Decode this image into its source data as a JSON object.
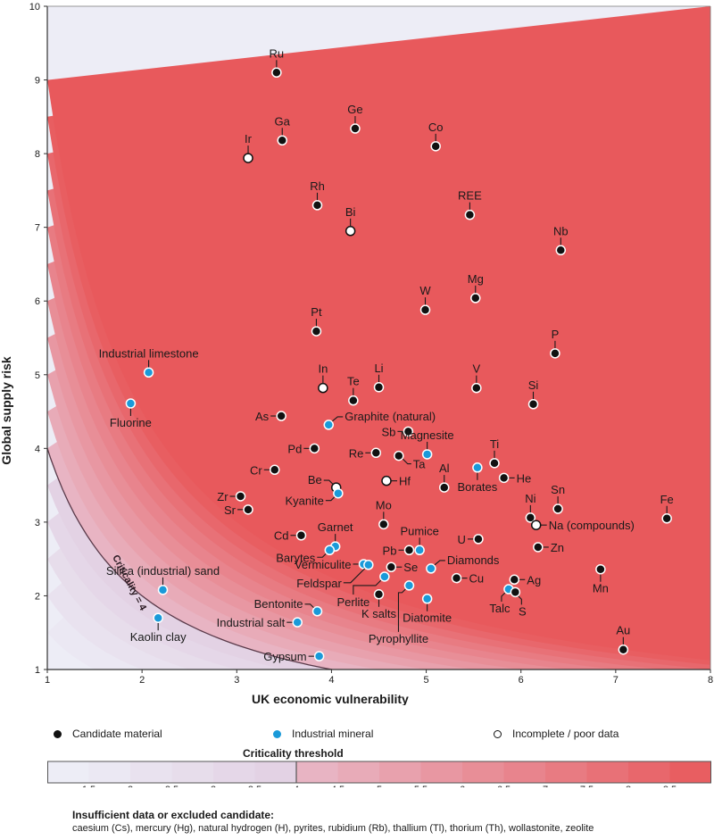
{
  "chart_data": {
    "type": "scatter",
    "title": "",
    "xlabel": "UK economic vulnerability",
    "ylabel": "Global supply risk",
    "xlim": [
      1,
      8
    ],
    "ylim": [
      1,
      10
    ],
    "x_ticks": [
      "1",
      "2",
      "3",
      "4",
      "5",
      "6",
      "7",
      "8"
    ],
    "y_ticks": [
      "1",
      "2",
      "3",
      "4",
      "5",
      "6",
      "7",
      "8",
      "9",
      "10"
    ],
    "background": "criticality contours (x × y), banded in 0.5 steps",
    "criticality_curve": {
      "label": "Criticality = 4",
      "value": 4
    },
    "categories": {
      "candidate": {
        "label": "Candidate material",
        "color": "#111111"
      },
      "industrial": {
        "label": "Industrial mineral",
        "color": "#1a9ad9"
      },
      "incomplete": {
        "label": "Incomplete / poor data",
        "color": "#ffffff"
      }
    },
    "points": [
      {
        "name": "Ru",
        "x": 3.42,
        "y": 9.1,
        "cat": "candidate",
        "pos": "top"
      },
      {
        "name": "Ga",
        "x": 3.48,
        "y": 8.18,
        "cat": "candidate",
        "pos": "top"
      },
      {
        "name": "Ir",
        "x": 3.12,
        "y": 7.94,
        "cat": "incomplete",
        "pos": "top"
      },
      {
        "name": "Ge",
        "x": 4.25,
        "y": 8.34,
        "cat": "candidate",
        "pos": "top"
      },
      {
        "name": "Co",
        "x": 5.1,
        "y": 8.1,
        "cat": "candidate",
        "pos": "top"
      },
      {
        "name": "Rh",
        "x": 3.85,
        "y": 7.3,
        "cat": "candidate",
        "pos": "top"
      },
      {
        "name": "Bi",
        "x": 4.2,
        "y": 6.95,
        "cat": "incomplete",
        "pos": "top"
      },
      {
        "name": "REE",
        "x": 5.46,
        "y": 7.17,
        "cat": "candidate",
        "pos": "top"
      },
      {
        "name": "Nb",
        "x": 6.42,
        "y": 6.69,
        "cat": "candidate",
        "pos": "top"
      },
      {
        "name": "W",
        "x": 4.99,
        "y": 5.88,
        "cat": "candidate",
        "pos": "top"
      },
      {
        "name": "Mg",
        "x": 5.52,
        "y": 6.04,
        "cat": "candidate",
        "pos": "top"
      },
      {
        "name": "Pt",
        "x": 3.84,
        "y": 5.59,
        "cat": "candidate",
        "pos": "top"
      },
      {
        "name": "P",
        "x": 6.36,
        "y": 5.29,
        "cat": "candidate",
        "pos": "top"
      },
      {
        "name": "In",
        "x": 3.91,
        "y": 4.82,
        "cat": "incomplete",
        "pos": "top"
      },
      {
        "name": "Te",
        "x": 4.23,
        "y": 4.65,
        "cat": "candidate",
        "pos": "top"
      },
      {
        "name": "Li",
        "x": 4.5,
        "y": 4.83,
        "cat": "candidate",
        "pos": "top"
      },
      {
        "name": "V",
        "x": 5.53,
        "y": 4.82,
        "cat": "candidate",
        "pos": "top"
      },
      {
        "name": "Si",
        "x": 6.13,
        "y": 4.6,
        "cat": "candidate",
        "pos": "top"
      },
      {
        "name": "As",
        "x": 3.47,
        "y": 4.44,
        "cat": "candidate",
        "pos": "left"
      },
      {
        "name": "Graphite (natural)",
        "x": 3.97,
        "y": 4.32,
        "cat": "industrial",
        "pos": "right-up"
      },
      {
        "name": "Sb",
        "x": 4.81,
        "y": 4.23,
        "cat": "candidate",
        "pos": "left"
      },
      {
        "name": "Magnesite",
        "x": 5.01,
        "y": 3.92,
        "cat": "industrial",
        "pos": "top"
      },
      {
        "name": "Pd",
        "x": 3.82,
        "y": 4.0,
        "cat": "candidate",
        "pos": "left"
      },
      {
        "name": "Re",
        "x": 4.47,
        "y": 3.94,
        "cat": "candidate",
        "pos": "left"
      },
      {
        "name": "Ta",
        "x": 4.71,
        "y": 3.9,
        "cat": "candidate",
        "pos": "right-down"
      },
      {
        "name": "Ti",
        "x": 5.72,
        "y": 3.8,
        "cat": "candidate",
        "pos": "top"
      },
      {
        "name": "Borates",
        "x": 5.54,
        "y": 3.74,
        "cat": "industrial",
        "pos": "bottom"
      },
      {
        "name": "He",
        "x": 5.82,
        "y": 3.6,
        "cat": "candidate",
        "pos": "right"
      },
      {
        "name": "Al",
        "x": 5.19,
        "y": 3.47,
        "cat": "candidate",
        "pos": "top"
      },
      {
        "name": "Hf",
        "x": 4.58,
        "y": 3.56,
        "cat": "incomplete",
        "pos": "right"
      },
      {
        "name": "Be",
        "x": 4.05,
        "y": 3.47,
        "cat": "incomplete",
        "pos": "left-up"
      },
      {
        "name": "Kyanite",
        "x": 4.07,
        "y": 3.39,
        "cat": "industrial",
        "pos": "left-down"
      },
      {
        "name": "Cr",
        "x": 3.4,
        "y": 3.71,
        "cat": "candidate",
        "pos": "left"
      },
      {
        "name": "Zr",
        "x": 3.04,
        "y": 3.35,
        "cat": "candidate",
        "pos": "left"
      },
      {
        "name": "Sr",
        "x": 3.12,
        "y": 3.17,
        "cat": "candidate",
        "pos": "left"
      },
      {
        "name": "Ni",
        "x": 6.1,
        "y": 3.06,
        "cat": "candidate",
        "pos": "top"
      },
      {
        "name": "Sn",
        "x": 6.39,
        "y": 3.18,
        "cat": "candidate",
        "pos": "top"
      },
      {
        "name": "Na (compounds)",
        "x": 6.16,
        "y": 2.96,
        "cat": "incomplete",
        "pos": "right"
      },
      {
        "name": "Fe",
        "x": 7.54,
        "y": 3.05,
        "cat": "candidate",
        "pos": "top"
      },
      {
        "name": "Mo",
        "x": 4.55,
        "y": 2.97,
        "cat": "candidate",
        "pos": "top"
      },
      {
        "name": "Cd",
        "x": 3.68,
        "y": 2.82,
        "cat": "candidate",
        "pos": "left"
      },
      {
        "name": "Garnet",
        "x": 4.04,
        "y": 2.67,
        "cat": "industrial",
        "pos": "top"
      },
      {
        "name": "Barytes",
        "x": 3.98,
        "y": 2.62,
        "cat": "industrial",
        "pos": "left-down"
      },
      {
        "name": "Pumice",
        "x": 4.93,
        "y": 2.62,
        "cat": "industrial",
        "pos": "top"
      },
      {
        "name": "Pb",
        "x": 4.82,
        "y": 2.62,
        "cat": "candidate",
        "pos": "left"
      },
      {
        "name": "U",
        "x": 5.55,
        "y": 2.77,
        "cat": "candidate",
        "pos": "left"
      },
      {
        "name": "Zn",
        "x": 6.18,
        "y": 2.66,
        "cat": "candidate",
        "pos": "right"
      },
      {
        "name": "Vermiculite",
        "x": 4.34,
        "y": 2.43,
        "cat": "industrial",
        "pos": "left"
      },
      {
        "name": "Feldspar",
        "x": 4.39,
        "y": 2.42,
        "cat": "industrial",
        "pos": "left-down2"
      },
      {
        "name": "Se",
        "x": 4.63,
        "y": 2.39,
        "cat": "candidate",
        "pos": "right"
      },
      {
        "name": "Diamonds",
        "x": 5.05,
        "y": 2.37,
        "cat": "industrial",
        "pos": "right-up"
      },
      {
        "name": "Mn",
        "x": 6.84,
        "y": 2.36,
        "cat": "candidate",
        "pos": "bottom"
      },
      {
        "name": "Perlite",
        "x": 4.56,
        "y": 2.26,
        "cat": "industrial",
        "pos": "elbow-left"
      },
      {
        "name": "Cu",
        "x": 5.32,
        "y": 2.24,
        "cat": "candidate",
        "pos": "right"
      },
      {
        "name": "Ag",
        "x": 5.93,
        "y": 2.22,
        "cat": "candidate",
        "pos": "right"
      },
      {
        "name": "Silica (industrial) sand",
        "x": 2.22,
        "y": 2.08,
        "cat": "industrial",
        "pos": "top"
      },
      {
        "name": "Talc",
        "x": 5.87,
        "y": 2.09,
        "cat": "industrial",
        "pos": "bottom-left"
      },
      {
        "name": "S",
        "x": 5.94,
        "y": 2.05,
        "cat": "candidate",
        "pos": "bottom-right"
      },
      {
        "name": "Pyrophyllite",
        "x": 4.82,
        "y": 2.14,
        "cat": "industrial",
        "pos": "elbow-bottom"
      },
      {
        "name": "K salts",
        "x": 4.5,
        "y": 2.02,
        "cat": "candidate",
        "pos": "bottom"
      },
      {
        "name": "Diatomite",
        "x": 5.01,
        "y": 1.96,
        "cat": "industrial",
        "pos": "bottom"
      },
      {
        "name": "Bentonite",
        "x": 3.85,
        "y": 1.79,
        "cat": "industrial",
        "pos": "left-up"
      },
      {
        "name": "Kaolin clay",
        "x": 2.17,
        "y": 1.7,
        "cat": "industrial",
        "pos": "bottom"
      },
      {
        "name": "Industrial salt",
        "x": 3.64,
        "y": 1.64,
        "cat": "industrial",
        "pos": "left"
      },
      {
        "name": "Au",
        "x": 7.08,
        "y": 1.27,
        "cat": "candidate",
        "pos": "top"
      },
      {
        "name": "Gypsum",
        "x": 3.87,
        "y": 1.18,
        "cat": "industrial",
        "pos": "left"
      },
      {
        "name": "Industrial limestone",
        "x": 2.07,
        "y": 5.03,
        "cat": "industrial",
        "pos": "top"
      },
      {
        "name": "Fluorine",
        "x": 1.88,
        "y": 4.61,
        "cat": "industrial",
        "pos": "bottom"
      }
    ],
    "colorbar": {
      "title": "Criticality threshold",
      "range": [
        1,
        9
      ],
      "threshold": 4,
      "ticks": [
        "1.5",
        "2",
        "2.5",
        "3",
        "3.5",
        "4",
        "4.5",
        "5",
        "5.5",
        "6",
        "6.5",
        "7",
        "7.5",
        "8",
        "8.5"
      ],
      "low_color": "#eef0f8",
      "mid_color": "#e2cfe2",
      "high_color": "#e8595c"
    },
    "legend_placement": "bottom"
  },
  "legend": {
    "candidate": "Candidate material",
    "industrial": "Industrial mineral",
    "incomplete": "Incomplete / poor data"
  },
  "colorbar_title": "Criticality threshold",
  "footnote": {
    "title": "Insufficient data or excluded candidate:",
    "text": "caesium (Cs), mercury (Hg), natural hydrogen (H), pyrites, rubidium (Rb), thallium (Tl), thorium (Th), wollastonite, zeolite"
  }
}
